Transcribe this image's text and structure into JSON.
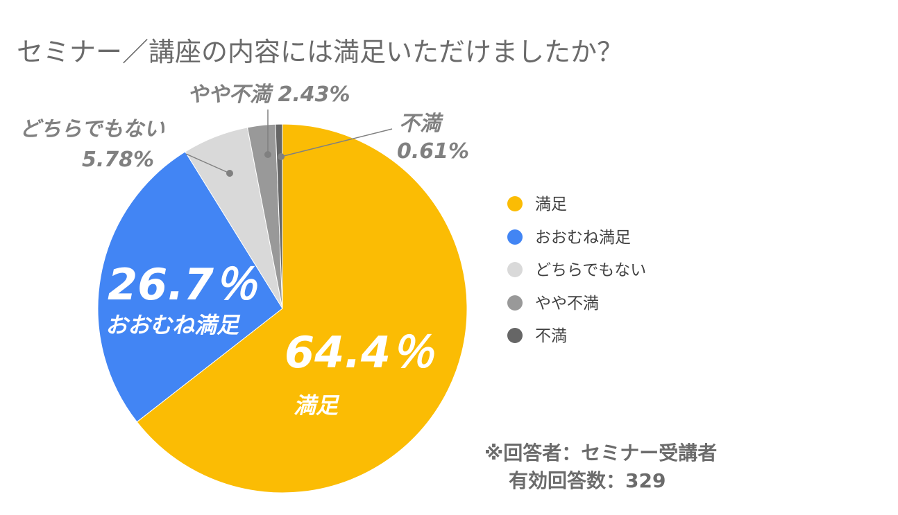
{
  "colors": {
    "satisfied": "#fbbc04",
    "mostly": "#4285f4",
    "neutral": "#d9d9d9",
    "somewhat_dissatisfied": "#999999",
    "dissatisfied": "#666666"
  },
  "chart_data": {
    "type": "pie",
    "title": "セミナー／講座の内容には満足いただけましたか？",
    "slices": [
      {
        "name": "満足",
        "value": 64.4,
        "color": "#fbbc04"
      },
      {
        "name": "おおむね満足",
        "value": 26.7,
        "color": "#4285f4"
      },
      {
        "name": "どちらでもない",
        "value": 5.78,
        "color": "#d9d9d9"
      },
      {
        "name": "やや不満",
        "value": 2.43,
        "color": "#999999"
      },
      {
        "name": "不満",
        "value": 0.61,
        "color": "#666666"
      }
    ],
    "start_angle_deg": 0,
    "direction": "clockwise",
    "legend_position": "right"
  },
  "labels": {
    "satisfied_pct": "64.4％",
    "satisfied_name": "満足",
    "mostly_pct": "26.7％",
    "mostly_name": "おおむね満足",
    "neutral_name": "どちらでもない",
    "neutral_pct": "5.78%",
    "somewhat_line": "やや不満 2.43%",
    "dissatisfied_name": "不満",
    "dissatisfied_pct": "0.61%"
  },
  "legend": [
    {
      "label": "満足",
      "color": "#fbbc04"
    },
    {
      "label": "おおむね満足",
      "color": "#4285f4"
    },
    {
      "label": "どちらでもない",
      "color": "#d9d9d9"
    },
    {
      "label": "やや不満",
      "color": "#999999"
    },
    {
      "label": "不満",
      "color": "#666666"
    }
  ],
  "note": {
    "line1": "※回答者：セミナー受講者",
    "line2": "有効回答数：329"
  }
}
